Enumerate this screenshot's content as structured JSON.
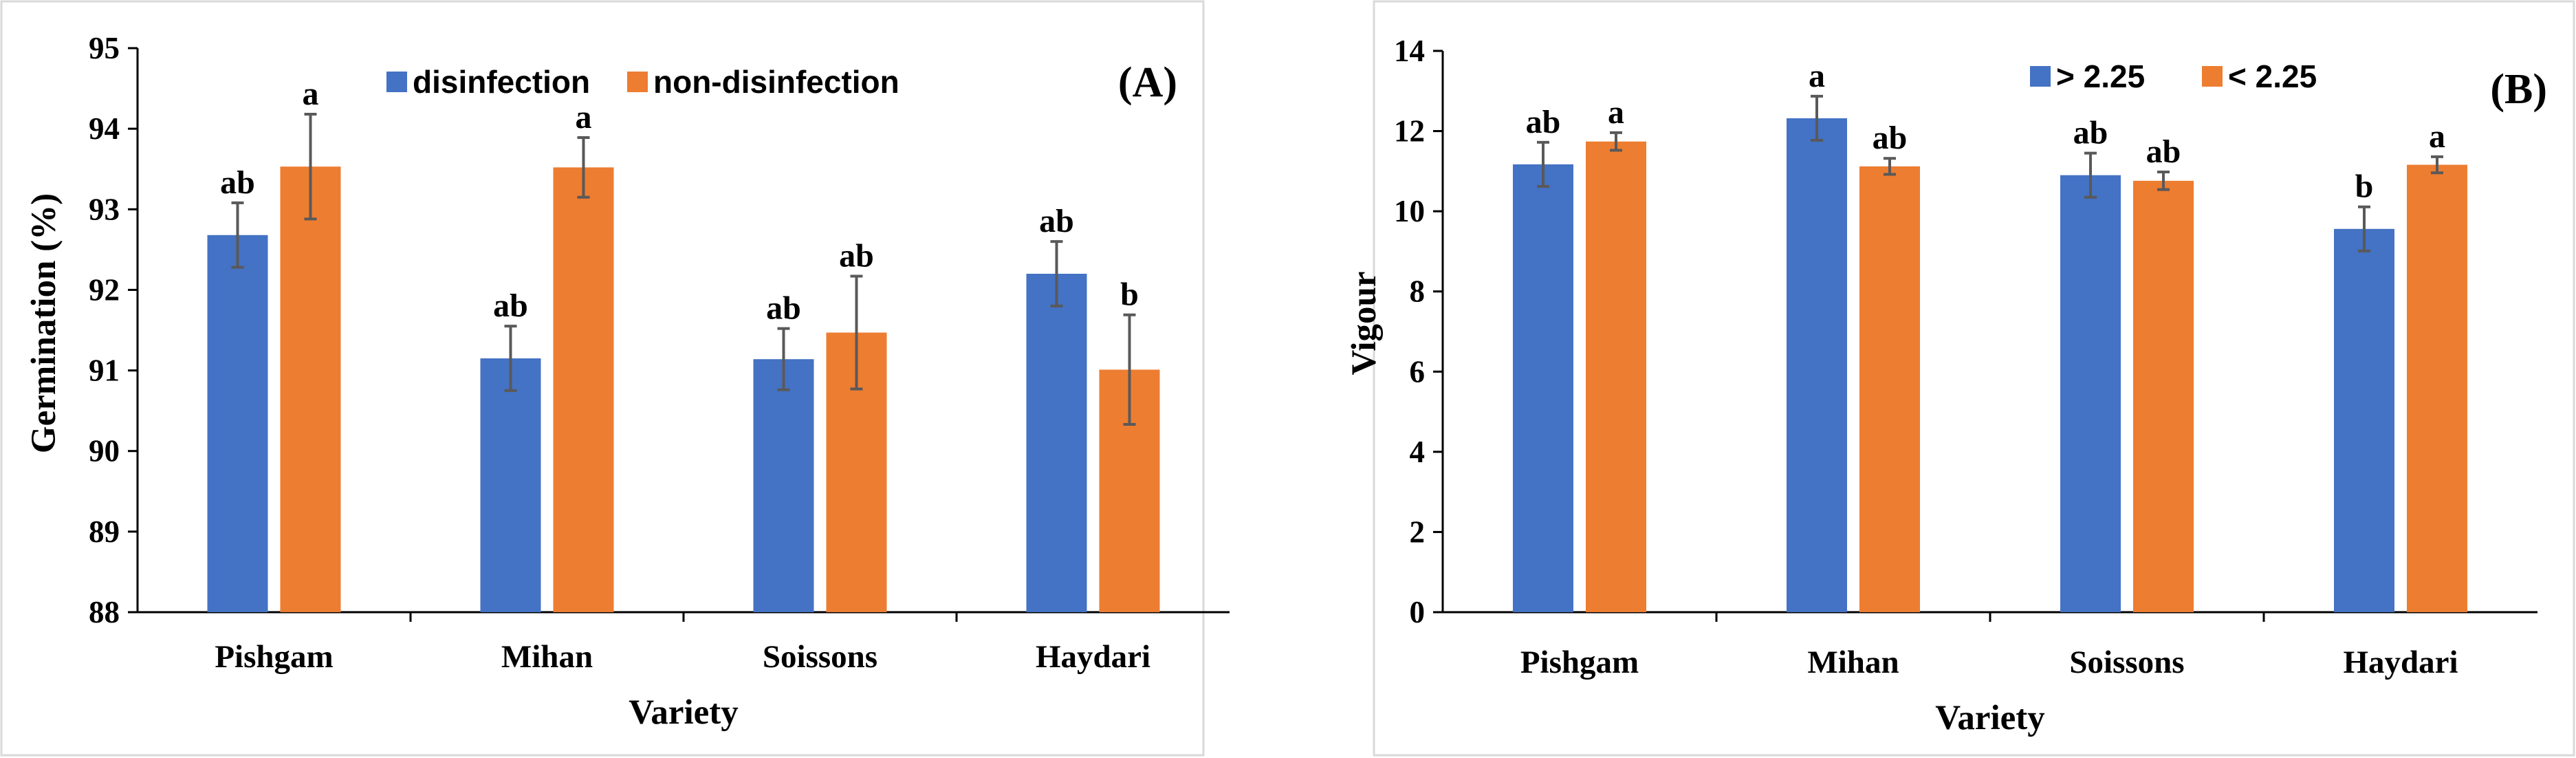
{
  "colors": {
    "series1": "#4472C4",
    "series2": "#ED7D31"
  },
  "chart_data": [
    {
      "type": "bar",
      "panel": "(A)",
      "categories": [
        "Pishgam",
        "Mihan",
        "Soissons",
        "Haydari"
      ],
      "xlabel": "Variety",
      "ylabel": "Germination (%)",
      "ylim": [
        88,
        95
      ],
      "yticks": [
        "88",
        "89",
        "90",
        "91",
        "92",
        "93",
        "94",
        "95"
      ],
      "legend_position": "top",
      "series": [
        {
          "name": "disinfection",
          "values": [
            92.68,
            91.15,
            91.14,
            92.2
          ],
          "errors": [
            0.4,
            0.4,
            0.38,
            0.4
          ],
          "sig": [
            "ab",
            "ab",
            "ab",
            "ab"
          ]
        },
        {
          "name": "non-disinfection",
          "values": [
            93.53,
            93.52,
            91.47,
            91.01
          ],
          "errors": [
            0.65,
            0.37,
            0.7,
            0.68
          ],
          "sig": [
            "a",
            "a",
            "ab",
            "b"
          ]
        }
      ]
    },
    {
      "type": "bar",
      "panel": "(B)",
      "categories": [
        "Pishgam",
        "Mihan",
        "Soissons",
        "Haydari"
      ],
      "xlabel": "Variety",
      "ylabel": "Vigour",
      "ylim": [
        0,
        14
      ],
      "yticks": [
        "0",
        "2",
        "4",
        "6",
        "8",
        "10",
        "12",
        "14"
      ],
      "legend_position": "top",
      "series": [
        {
          "name": "> 2.25",
          "values": [
            11.17,
            12.32,
            10.9,
            9.56
          ],
          "errors": [
            0.55,
            0.55,
            0.55,
            0.55
          ],
          "sig": [
            "ab",
            "a",
            "ab",
            "b"
          ]
        },
        {
          "name": "< 2.25",
          "values": [
            11.74,
            11.12,
            10.76,
            11.16
          ],
          "errors": [
            0.22,
            0.2,
            0.22,
            0.2
          ],
          "sig": [
            "a",
            "ab",
            "ab",
            "a"
          ]
        }
      ]
    }
  ]
}
